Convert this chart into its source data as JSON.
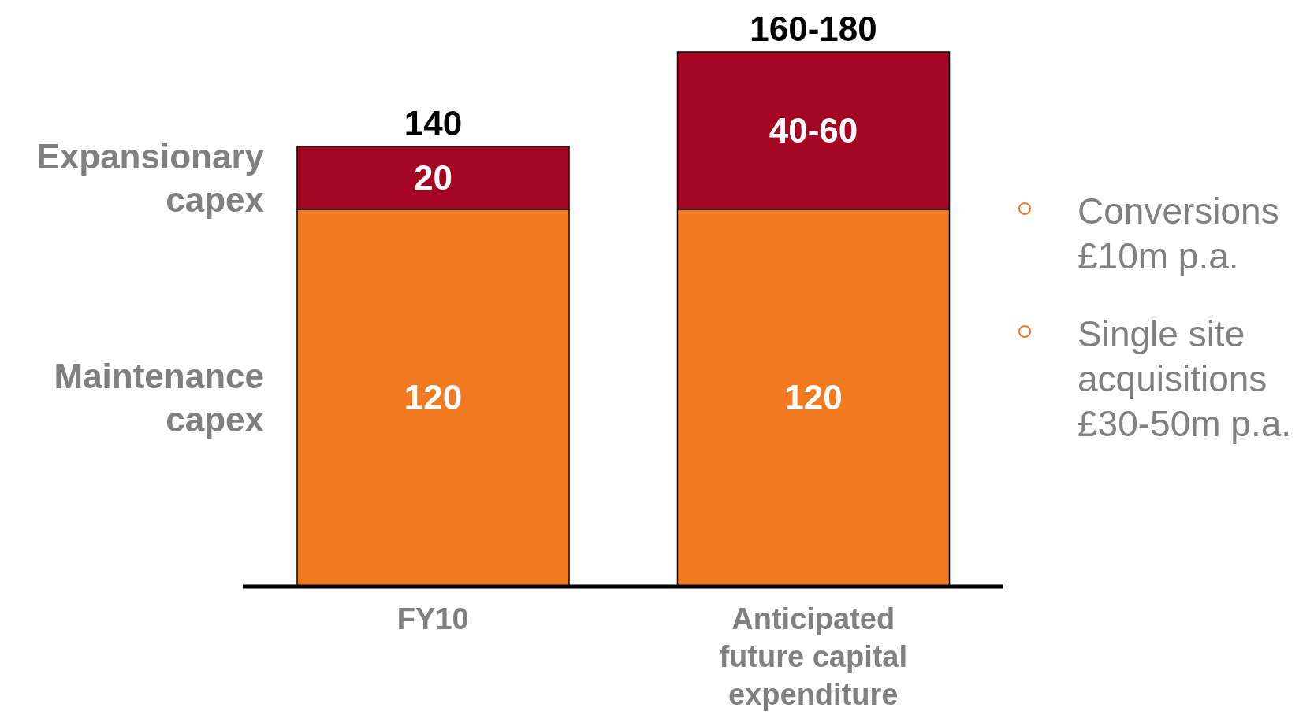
{
  "chart_data": {
    "type": "bar",
    "stacked": true,
    "legend": "left",
    "categories": [
      "FY10",
      "Anticipated future capital expenditure"
    ],
    "series": [
      {
        "name": "Maintenance capex",
        "color": "#f27b21",
        "values": [
          120,
          120
        ],
        "value_labels": [
          "120",
          "120"
        ]
      },
      {
        "name": "Expansionary capex",
        "color": "#a50621",
        "values": [
          20,
          50
        ],
        "value_labels": [
          "20",
          "40-60"
        ]
      }
    ],
    "totals": [
      "140",
      "160-180"
    ],
    "annotations": [
      "Conversions £10m p.a.",
      "Single site acquisitions £30-50m p.a."
    ]
  }
}
